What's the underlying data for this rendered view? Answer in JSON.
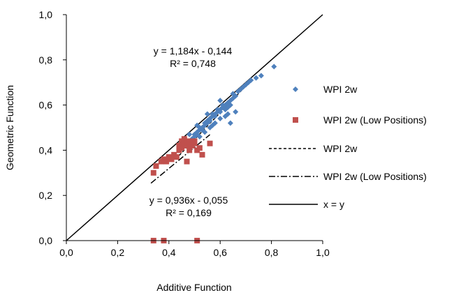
{
  "chart_data": {
    "type": "scatter",
    "xlabel": "Additive Function",
    "ylabel": "Geometric Function",
    "xlim": [
      0,
      1
    ],
    "ylim": [
      0,
      1
    ],
    "xticks": [
      "0,0",
      "0,2",
      "0,4",
      "0,6",
      "0,8",
      "1,0"
    ],
    "yticks": [
      "0,0",
      "0,2",
      "0,4",
      "0,6",
      "0,8",
      "1,0"
    ],
    "grid": false,
    "legend_position": "right",
    "annotations": {
      "eq1": "y = 1,184x - 0,144",
      "r2_1": "R² = 0,748",
      "eq2": "y = 0,936x - 0,055",
      "r2_2": "R² = 0,169"
    },
    "series": [
      {
        "name": "WPI 2w",
        "kind": "points",
        "marker": "diamond",
        "color": "#4f81bd",
        "points": [
          [
            0.44,
            0.4
          ],
          [
            0.45,
            0.41
          ],
          [
            0.46,
            0.42
          ],
          [
            0.47,
            0.42
          ],
          [
            0.48,
            0.43
          ],
          [
            0.48,
            0.44
          ],
          [
            0.49,
            0.45
          ],
          [
            0.49,
            0.44
          ],
          [
            0.5,
            0.46
          ],
          [
            0.5,
            0.47
          ],
          [
            0.51,
            0.48
          ],
          [
            0.51,
            0.47
          ],
          [
            0.52,
            0.49
          ],
          [
            0.52,
            0.5
          ],
          [
            0.53,
            0.5
          ],
          [
            0.53,
            0.49
          ],
          [
            0.54,
            0.51
          ],
          [
            0.54,
            0.52
          ],
          [
            0.55,
            0.52
          ],
          [
            0.55,
            0.53
          ],
          [
            0.56,
            0.54
          ],
          [
            0.56,
            0.53
          ],
          [
            0.57,
            0.55
          ],
          [
            0.57,
            0.56
          ],
          [
            0.58,
            0.56
          ],
          [
            0.58,
            0.55
          ],
          [
            0.59,
            0.57
          ],
          [
            0.59,
            0.58
          ],
          [
            0.6,
            0.58
          ],
          [
            0.6,
            0.57
          ],
          [
            0.61,
            0.59
          ],
          [
            0.61,
            0.6
          ],
          [
            0.62,
            0.6
          ],
          [
            0.62,
            0.58
          ],
          [
            0.63,
            0.61
          ],
          [
            0.63,
            0.59
          ],
          [
            0.64,
            0.62
          ],
          [
            0.64,
            0.6
          ],
          [
            0.65,
            0.63
          ],
          [
            0.66,
            0.64
          ],
          [
            0.67,
            0.66
          ],
          [
            0.68,
            0.67
          ],
          [
            0.69,
            0.68
          ],
          [
            0.7,
            0.69
          ],
          [
            0.71,
            0.7
          ],
          [
            0.72,
            0.71
          ],
          [
            0.74,
            0.72
          ],
          [
            0.76,
            0.73
          ],
          [
            0.81,
            0.77
          ],
          [
            0.54,
            0.48
          ],
          [
            0.58,
            0.52
          ],
          [
            0.62,
            0.55
          ],
          [
            0.64,
            0.52
          ],
          [
            0.66,
            0.57
          ],
          [
            0.56,
            0.5
          ],
          [
            0.6,
            0.54
          ],
          [
            0.63,
            0.56
          ],
          [
            0.57,
            0.51
          ],
          [
            0.52,
            0.46
          ],
          [
            0.55,
            0.56
          ],
          [
            0.6,
            0.62
          ],
          [
            0.65,
            0.65
          ],
          [
            0.51,
            0.51
          ],
          [
            0.48,
            0.47
          ]
        ]
      },
      {
        "name": "WPI 2w (Low Positions)",
        "kind": "points",
        "marker": "square",
        "color": "#c0504d",
        "points": [
          [
            0.34,
            0.3
          ],
          [
            0.35,
            0.33
          ],
          [
            0.37,
            0.35
          ],
          [
            0.38,
            0.36
          ],
          [
            0.39,
            0.35
          ],
          [
            0.4,
            0.37
          ],
          [
            0.41,
            0.36
          ],
          [
            0.42,
            0.38
          ],
          [
            0.43,
            0.37
          ],
          [
            0.44,
            0.4
          ],
          [
            0.44,
            0.42
          ],
          [
            0.45,
            0.41
          ],
          [
            0.45,
            0.44
          ],
          [
            0.46,
            0.43
          ],
          [
            0.46,
            0.45
          ],
          [
            0.47,
            0.42
          ],
          [
            0.47,
            0.44
          ],
          [
            0.48,
            0.4
          ],
          [
            0.48,
            0.43
          ],
          [
            0.49,
            0.44
          ],
          [
            0.49,
            0.42
          ],
          [
            0.5,
            0.44
          ],
          [
            0.5,
            0.43
          ],
          [
            0.51,
            0.4
          ],
          [
            0.52,
            0.41
          ],
          [
            0.53,
            0.38
          ],
          [
            0.56,
            0.43
          ],
          [
            0.47,
            0.35
          ],
          [
            0.34,
            0.0
          ],
          [
            0.38,
            0.0
          ],
          [
            0.51,
            0.0
          ]
        ]
      },
      {
        "name": "WPI 2w",
        "kind": "line",
        "style": "dashed",
        "color": "#000000",
        "line": [
          [
            0.44,
            0.377
          ],
          [
            0.72,
            0.708
          ]
        ]
      },
      {
        "name": "WPI 2w (Low Positions)",
        "kind": "line",
        "style": "dashdot",
        "color": "#000000",
        "line": [
          [
            0.33,
            0.254
          ],
          [
            0.56,
            0.469
          ]
        ]
      },
      {
        "name": "x = y",
        "kind": "line",
        "style": "solid",
        "color": "#000000",
        "line": [
          [
            0,
            0
          ],
          [
            1,
            1
          ]
        ]
      }
    ]
  }
}
